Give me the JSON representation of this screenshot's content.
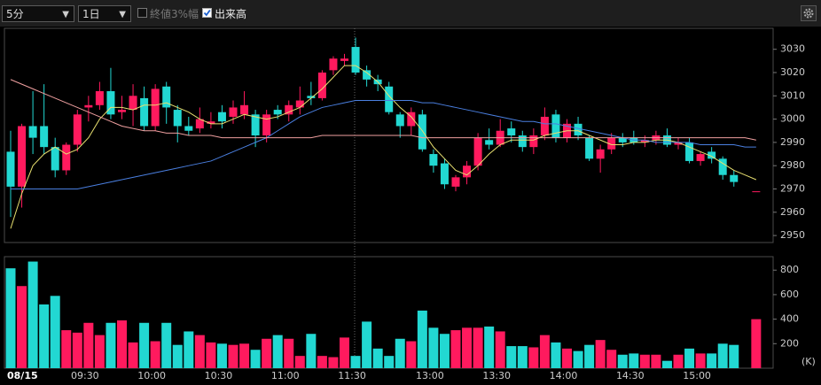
{
  "controls": {
    "interval": "5分",
    "range": "1日",
    "close_3pct": "終値3%幅",
    "volume": "出来高"
  },
  "chart_data": {
    "type": "candlestick",
    "categories": [
      "08/15",
      null,
      null,
      null,
      null,
      null,
      null,
      "09:30",
      null,
      null,
      null,
      null,
      null,
      "10:00",
      null,
      null,
      null,
      null,
      null,
      "10:30",
      null,
      null,
      null,
      null,
      null,
      "11:00",
      null,
      null,
      null,
      null,
      null,
      "11:30",
      null,
      null,
      null,
      null,
      null,
      null,
      "13:00",
      null,
      null,
      null,
      null,
      null,
      "13:30",
      null,
      null,
      null,
      null,
      null,
      "14:00",
      null,
      null,
      null,
      null,
      null,
      "14:30",
      null,
      null,
      null,
      null,
      null,
      "15:00",
      null,
      null,
      null,
      null,
      null
    ],
    "open": [
      2986,
      2971,
      2997,
      2997,
      2988,
      2978,
      2989,
      3005,
      3006,
      3012,
      3003,
      3004,
      3009,
      2997,
      3014,
      3004,
      2997,
      2996,
      2998,
      3003,
      3001,
      3002,
      3002,
      2993,
      3004,
      3002,
      3005,
      3010,
      3009,
      3021,
      3025,
      3031,
      3021,
      3017,
      3014,
      3002,
      2997,
      3002,
      2985,
      2981,
      2971,
      2975,
      2980,
      2991,
      2989,
      2996,
      2993,
      2988,
      2993,
      3002,
      2992,
      2998,
      2992,
      2983,
      2987,
      2992,
      2992,
      2990,
      2991,
      2993,
      2989,
      2990,
      2982,
      2986,
      2983,
      2976,
      null,
      2969
    ],
    "high": [
      2995,
      2998,
      3012,
      3015,
      2992,
      2990,
      3004,
      3010,
      3016,
      3022,
      3010,
      3015,
      3014,
      3015,
      3016,
      3006,
      3001,
      3005,
      3003,
      3006,
      3008,
      3012,
      3004,
      3004,
      3006,
      3008,
      3014,
      3016,
      3021,
      3027,
      3028,
      3035,
      3023,
      3019,
      3016,
      3003,
      3005,
      3004,
      2987,
      2983,
      2976,
      2982,
      2994,
      2996,
      3000,
      2999,
      2995,
      2996,
      3005,
      3004,
      3000,
      3001,
      2993,
      2989,
      2994,
      2994,
      2995,
      2993,
      2995,
      2996,
      2992,
      2992,
      2986,
      2988,
      2984,
      2978,
      null,
      2969
    ],
    "low": [
      2958,
      2962,
      2985,
      2985,
      2975,
      2976,
      2986,
      2999,
      3004,
      3000,
      3000,
      2997,
      2995,
      2995,
      2998,
      2990,
      2993,
      2994,
      2996,
      2996,
      2998,
      3000,
      2988,
      2990,
      3000,
      2999,
      3002,
      3006,
      3008,
      3019,
      3023,
      3019,
      3014,
      3012,
      3002,
      2992,
      2993,
      2986,
      2977,
      2970,
      2969,
      2972,
      2978,
      2987,
      2988,
      2990,
      2986,
      2985,
      2991,
      2990,
      2990,
      2991,
      2982,
      2977,
      2985,
      2988,
      2989,
      2988,
      2989,
      2988,
      2987,
      2981,
      2980,
      2981,
      2974,
      2971,
      null,
      2969
    ],
    "close": [
      2971,
      2997,
      2992,
      2988,
      2978,
      2989,
      3002,
      3006,
      3012,
      3002,
      3004,
      3010,
      2997,
      3013,
      3005,
      2997,
      2995,
      3000,
      2999,
      2999,
      3005,
      3006,
      2993,
      3002,
      3002,
      3006,
      3008,
      3009,
      3020,
      3026,
      3026,
      3020,
      3017,
      3015,
      3003,
      2997,
      3003,
      2987,
      2980,
      2972,
      2975,
      2980,
      2992,
      2989,
      2995,
      2993,
      2988,
      2993,
      3001,
      2992,
      2998,
      2993,
      2983,
      2987,
      2992,
      2990,
      2990,
      2991,
      2993,
      2989,
      2990,
      2982,
      2985,
      2983,
      2976,
      2973,
      null,
      2969
    ],
    "up_color": "#ff1a5e",
    "down_color": "#22d8d2",
    "ylim": [
      2947,
      3039
    ],
    "yticks": [
      2950,
      2960,
      2970,
      2980,
      2990,
      3000,
      3010,
      3020,
      3030
    ],
    "moving_averages": [
      {
        "color": "#e8e070",
        "values": [
          2953,
          2968,
          2980,
          2985,
          2988,
          2985,
          2987,
          2992,
          3000,
          3005,
          3005,
          3004,
          3006,
          3006,
          3007,
          3005,
          3003,
          3000,
          2998,
          2998,
          3000,
          3002,
          3001,
          3000,
          3001,
          3003,
          3005,
          3009,
          3013,
          3018,
          3023,
          3023,
          3020,
          3016,
          3010,
          3005,
          3001,
          2995,
          2988,
          2983,
          2978,
          2976,
          2980,
          2985,
          2989,
          2991,
          2991,
          2991,
          2993,
          2994,
          2995,
          2995,
          2993,
          2991,
          2989,
          2989,
          2990,
          2990,
          2991,
          2991,
          2990,
          2988,
          2986,
          2984,
          2981,
          2978,
          2976,
          2974
        ]
      },
      {
        "color": "#4a7fe0",
        "values": [
          2970,
          2970,
          2970,
          2970,
          2970,
          2970,
          2970,
          2971,
          2972,
          2973,
          2974,
          2975,
          2976,
          2977,
          2978,
          2979,
          2980,
          2981,
          2982,
          2984,
          2986,
          2988,
          2990,
          2992,
          2995,
          2998,
          3001,
          3003,
          3005,
          3006,
          3007,
          3008,
          3008,
          3008,
          3008,
          3008,
          3008,
          3007,
          3007,
          3006,
          3005,
          3004,
          3003,
          3002,
          3001,
          3000,
          2999,
          2999,
          2998,
          2998,
          2997,
          2996,
          2995,
          2994,
          2993,
          2992,
          2991,
          2991,
          2990,
          2990,
          2990,
          2990,
          2989,
          2989,
          2989,
          2989,
          2988,
          2988
        ]
      },
      {
        "color": "#f0a0a0",
        "values": [
          3017,
          3015,
          3013,
          3011,
          3009,
          3007,
          3005,
          3003,
          3001,
          2999,
          2997,
          2996,
          2995,
          2995,
          2994,
          2994,
          2993,
          2993,
          2993,
          2992,
          2992,
          2992,
          2992,
          2992,
          2992,
          2992,
          2992,
          2992,
          2993,
          2993,
          2993,
          2993,
          2993,
          2993,
          2993,
          2993,
          2993,
          2992,
          2992,
          2992,
          2992,
          2992,
          2992,
          2992,
          2992,
          2992,
          2992,
          2992,
          2992,
          2992,
          2992,
          2992,
          2992,
          2992,
          2992,
          2992,
          2992,
          2992,
          2992,
          2992,
          2992,
          2992,
          2992,
          2992,
          2992,
          2992,
          2992,
          2991
        ]
      }
    ],
    "volume": {
      "values": [
        815,
        670,
        870,
        520,
        590,
        310,
        290,
        370,
        270,
        370,
        390,
        210,
        370,
        220,
        370,
        190,
        300,
        270,
        210,
        200,
        190,
        200,
        150,
        240,
        270,
        240,
        100,
        280,
        100,
        90,
        250,
        100,
        380,
        160,
        100,
        240,
        220,
        470,
        330,
        280,
        310,
        330,
        330,
        340,
        300,
        180,
        180,
        170,
        270,
        210,
        160,
        140,
        190,
        230,
        150,
        110,
        120,
        110,
        110,
        60,
        110,
        160,
        120,
        120,
        200,
        190,
        null,
        400
      ],
      "ylim": [
        0,
        910
      ],
      "yticks": [
        200,
        400,
        600,
        800
      ],
      "unit": "(K)"
    }
  }
}
